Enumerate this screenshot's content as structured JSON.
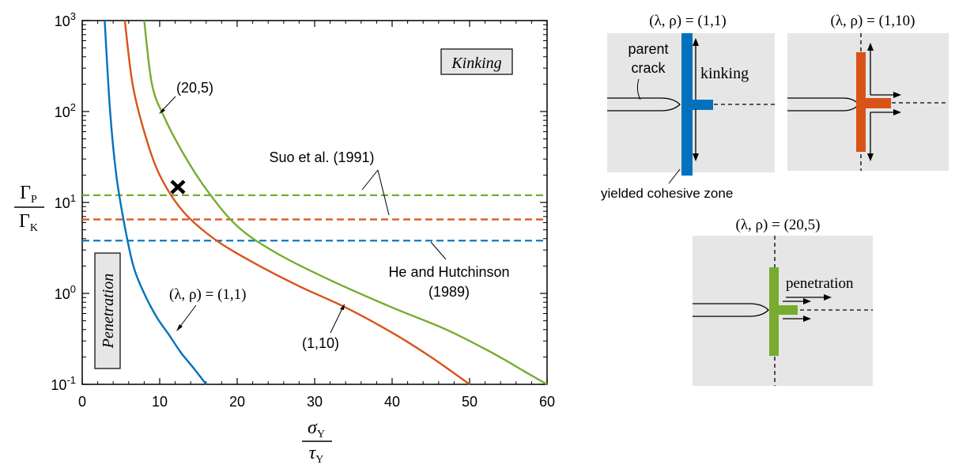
{
  "chart_data": {
    "type": "line",
    "xscale": "linear",
    "yscale": "log",
    "xlim": [
      0,
      60
    ],
    "ylim": [
      0.1,
      1000
    ],
    "xticks": [
      0,
      10,
      20,
      30,
      40,
      50,
      60
    ],
    "ytick_base": "10",
    "ytick_exponents": [
      "-1",
      "0",
      "1",
      "2",
      "3"
    ],
    "xlabel_num": "σ",
    "xlabel_num_sub": "Y",
    "xlabel_den": "τ",
    "xlabel_den_sub": "Y",
    "ylabel_num": "Γ",
    "ylabel_num_sub": "P",
    "ylabel_den": "Γ",
    "ylabel_den_sub": "K",
    "series": [
      {
        "color": "#0072BD",
        "x": [
          2.9,
          3.6,
          4.4,
          5.4,
          6.6,
          8.0,
          9.6,
          11.2,
          12.8,
          14.4,
          16.0
        ],
        "y": [
          1000,
          100,
          20,
          6,
          2.0,
          1.0,
          0.55,
          0.35,
          0.22,
          0.15,
          0.1
        ]
      },
      {
        "color": "#D95319",
        "x": [
          5.5,
          6.5,
          8.0,
          10.0,
          13.0,
          17.0,
          22.0,
          28.0,
          34.0,
          40.0,
          45.0,
          50.0
        ],
        "y": [
          1000,
          200,
          60,
          20,
          8,
          4,
          2.2,
          1.2,
          0.7,
          0.37,
          0.2,
          0.1
        ]
      },
      {
        "color": "#77AC30",
        "x": [
          8.0,
          9.0,
          10.5,
          13.0,
          16.0,
          20.0,
          25.0,
          32.0,
          40.0,
          47.0,
          53.0,
          57.0,
          60.0
        ],
        "y": [
          1000,
          200,
          90,
          35,
          14,
          5.5,
          2.8,
          1.4,
          0.7,
          0.4,
          0.22,
          0.14,
          0.1
        ]
      }
    ],
    "hlines": [
      {
        "color": "#77AC30",
        "y": 12,
        "dash": true
      },
      {
        "color": "#D95319",
        "y": 6.5,
        "dash": true
      },
      {
        "color": "#0072BD",
        "y": 3.8,
        "dash": true
      }
    ],
    "marker": {
      "label": "x",
      "x": 12.5,
      "y": 14
    },
    "annotations": {
      "kinking": "Kinking",
      "penetration": "Penetration",
      "suo": "Suo et al. (1991)",
      "he_line1": "He and Hutchinson",
      "he_line2": "(1989)",
      "label_20_5": "(20,5)",
      "label_1_10": "(1,10)",
      "label_1_1": "(λ, ρ) = (1,1)"
    }
  },
  "schematics": {
    "title_a": "(λ, ρ) = (1,1)",
    "title_b": "(λ, ρ) = (1,10)",
    "title_c": "(λ, ρ) = (20,5)",
    "parent_line1": "parent",
    "parent_line2": "crack",
    "kinking": "kinking",
    "yielded": "yielded cohesive zone",
    "penetration": "penetration",
    "colors": {
      "blue": "#0072BD",
      "orange": "#D95319",
      "green": "#77AC30",
      "panel": "#E6E6E6"
    }
  }
}
